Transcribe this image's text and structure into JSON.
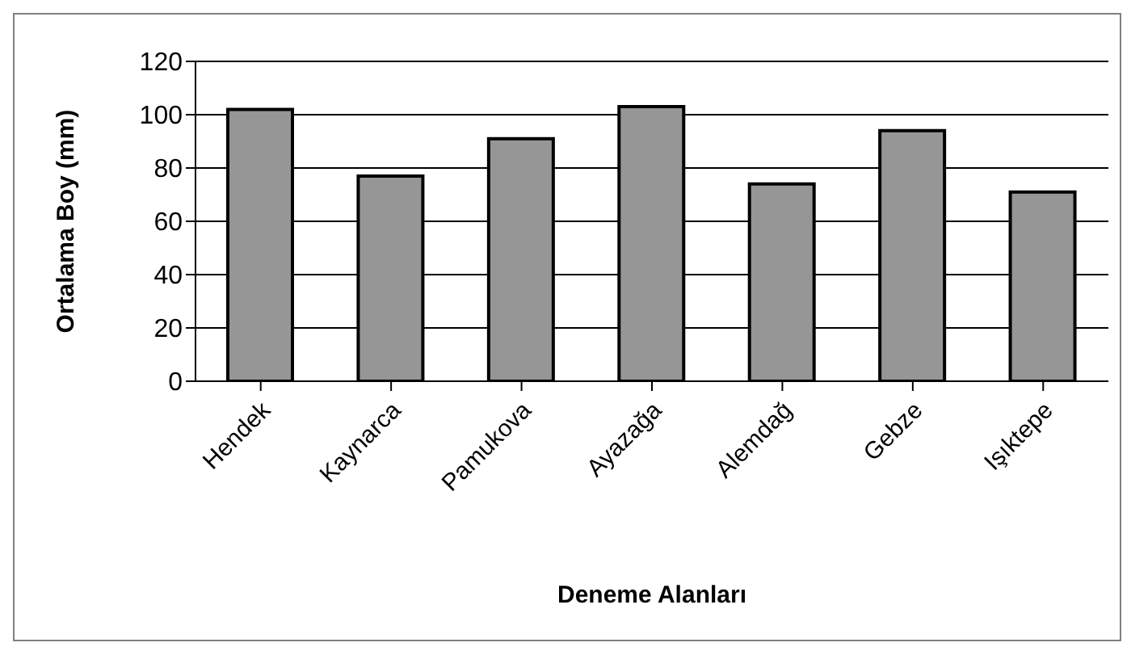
{
  "chart_data": {
    "type": "bar",
    "xlabel": "Deneme Alanları",
    "ylabel": "Ortalama Boy (mm)",
    "categories": [
      "Hendek",
      "Kaynarca",
      "Pamukova",
      "Ayazağa",
      "Alemdağ",
      "Gebze",
      "Işıktepe"
    ],
    "values": [
      102,
      77,
      91,
      103,
      74,
      94,
      71
    ],
    "color": "#969696",
    "ylim": [
      0,
      120
    ],
    "yticks": [
      0,
      20,
      40,
      60,
      80,
      100,
      120
    ],
    "grid": "y",
    "legend": false
  }
}
